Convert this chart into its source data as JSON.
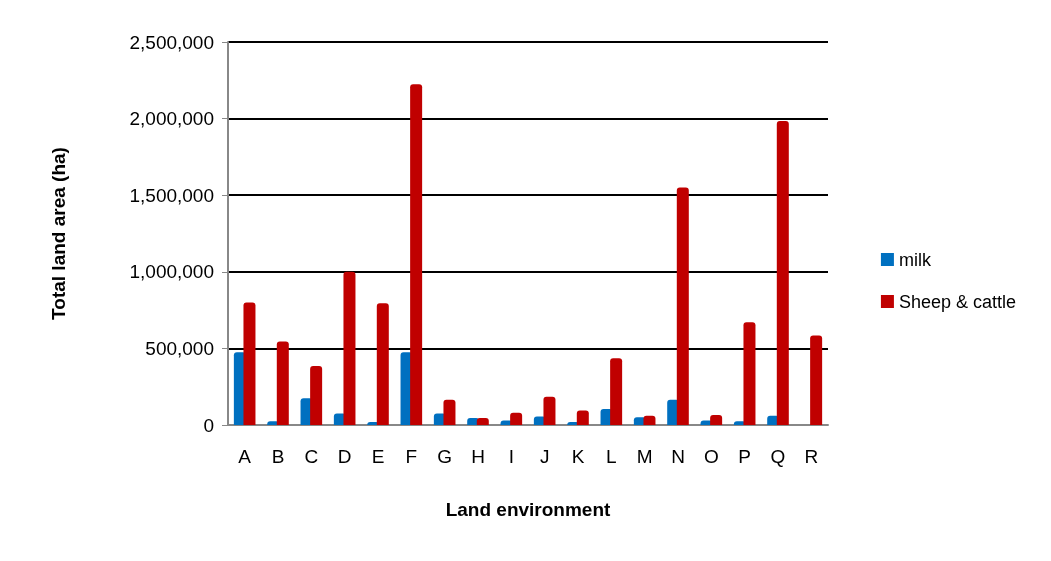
{
  "chart_data": {
    "type": "bar",
    "xlabel": "Land environment",
    "ylabel": "Total land area (ha)",
    "categories": [
      "A",
      "B",
      "C",
      "D",
      "E",
      "F",
      "G",
      "H",
      "I",
      "J",
      "K",
      "L",
      "M",
      "N",
      "O",
      "P",
      "Q",
      "R"
    ],
    "series": [
      {
        "name": "milk",
        "color": "#0070c0",
        "values": [
          475000,
          25000,
          175000,
          75000,
          20000,
          475000,
          75000,
          45000,
          30000,
          55000,
          20000,
          105000,
          50000,
          165000,
          30000,
          25000,
          60000,
          null
        ]
      },
      {
        "name": "Sheep & cattle",
        "color": "#c00000",
        "values": [
          800000,
          545000,
          385000,
          1000000,
          795000,
          2225000,
          165000,
          45000,
          80000,
          185000,
          95000,
          435000,
          60000,
          1550000,
          65000,
          670000,
          1985000,
          585000
        ]
      }
    ],
    "ylim": [
      0,
      2500000
    ],
    "yticks": [
      0,
      {
        "value": 500000,
        "label": "500,000"
      },
      {
        "value": 1000000,
        "label": "1,000,000"
      },
      {
        "value": 1500000,
        "label": "1,500,000"
      },
      {
        "value": 2000000,
        "label": "2,000,000"
      },
      {
        "value": 2500000,
        "label": "2,500,000"
      }
    ],
    "grid": "y",
    "legend": "right"
  }
}
